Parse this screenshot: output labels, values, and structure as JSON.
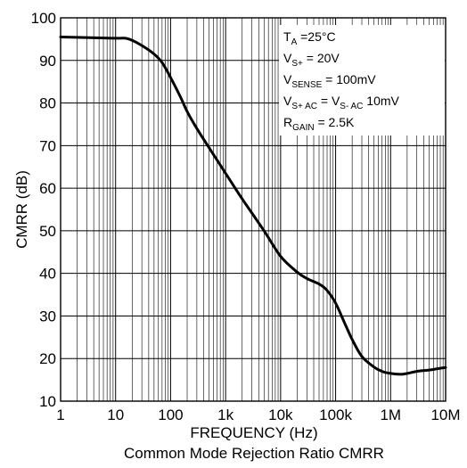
{
  "chart_data": {
    "type": "line",
    "title": "",
    "caption": "Common Mode Rejection Ratio CMRR",
    "xlabel": "FREQUENCY (Hz)",
    "ylabel": "CMRR (dB)",
    "x_scale": "log",
    "xlim": [
      1,
      10000000
    ],
    "ylim": [
      10,
      100
    ],
    "grid": true,
    "x_ticks": [
      {
        "value": 1,
        "label": "1"
      },
      {
        "value": 10,
        "label": "10"
      },
      {
        "value": 100,
        "label": "100"
      },
      {
        "value": 1000,
        "label": "1k"
      },
      {
        "value": 10000,
        "label": "10k"
      },
      {
        "value": 100000,
        "label": "100k"
      },
      {
        "value": 1000000,
        "label": "1M"
      },
      {
        "value": 10000000,
        "label": "10M"
      }
    ],
    "y_ticks": [
      10,
      20,
      30,
      40,
      50,
      60,
      70,
      80,
      90,
      100
    ],
    "series": [
      {
        "color": "#000000",
        "x": [
          1,
          5,
          10,
          15,
          20,
          30,
          50,
          70,
          100,
          150,
          200,
          300,
          500,
          1000,
          2000,
          5000,
          10000,
          20000,
          30000,
          50000,
          70000,
          100000,
          150000,
          200000,
          300000,
          500000,
          700000,
          1000000,
          1500000,
          2000000,
          3000000,
          5000000,
          7000000,
          10000000
        ],
        "y": [
          95.5,
          95.3,
          95.2,
          95.2,
          94.7,
          93.5,
          91.5,
          89.5,
          86,
          81.5,
          78,
          74,
          69.5,
          63.5,
          57.5,
          50,
          44,
          40.3,
          38.8,
          37.5,
          36,
          33,
          28,
          24.5,
          20.5,
          18,
          17,
          16.5,
          16.3,
          16.5,
          17,
          17.3,
          17.6,
          17.9
        ]
      }
    ],
    "annotations": {
      "ta": {
        "main": "T",
        "sub": "A",
        "tail": " =25°C"
      },
      "vs": {
        "main": "V",
        "sub": "S+",
        "tail": " = 20V"
      },
      "vsense": {
        "main": "V",
        "sub": "SENSE",
        "tail": " = 100mV"
      },
      "vsac": {
        "main": "V",
        "sub": "S+ AC",
        "mid": " = V",
        "sub2": "S- AC",
        "tail": " 10mV"
      },
      "rgain": {
        "main": "R",
        "sub": "GAIN",
        "tail": " = 2.5K"
      }
    }
  }
}
